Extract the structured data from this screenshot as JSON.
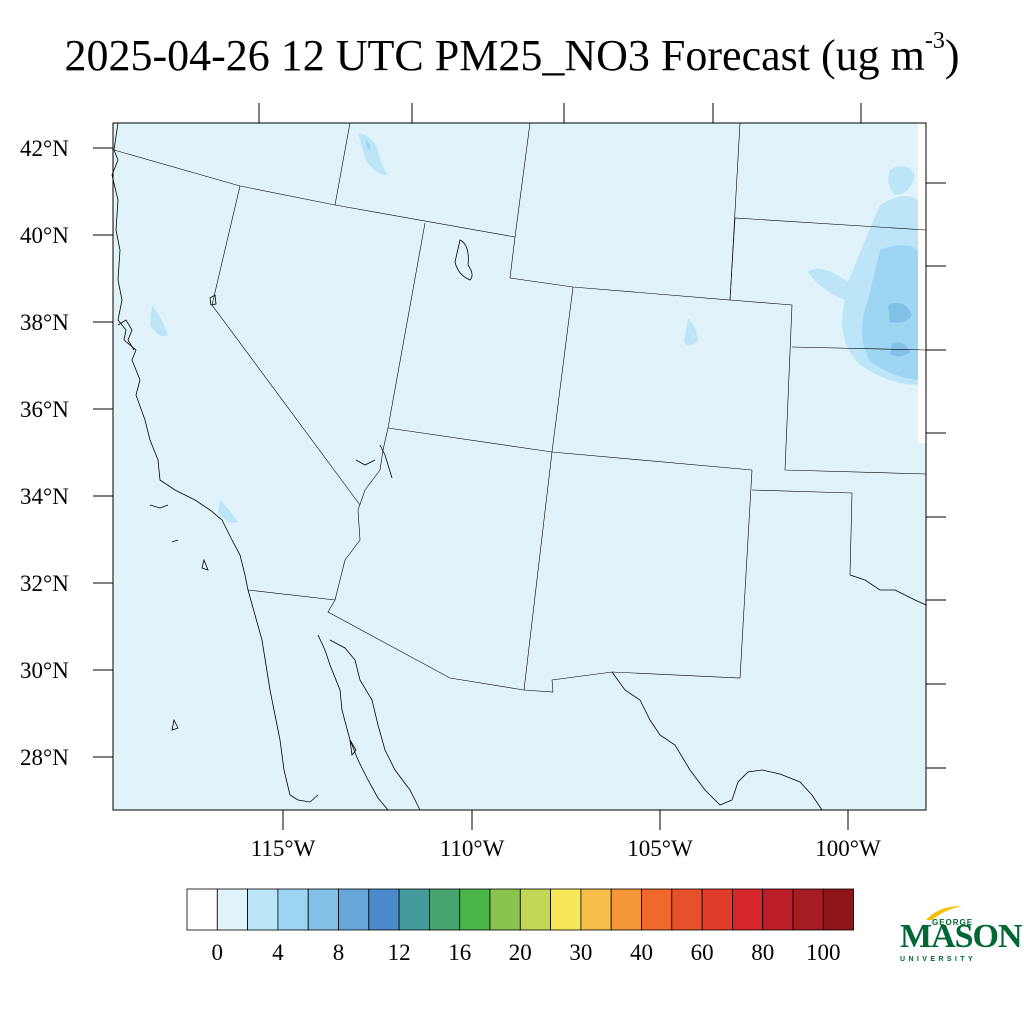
{
  "title": {
    "text": "2025-04-26 12 UTC PM25_NO3 Forecast (ug m",
    "unit_exponent": "-3",
    "closing": ")"
  },
  "lat_labels": [
    "42°N",
    "40°N",
    "38°N",
    "36°N",
    "34°N",
    "32°N",
    "30°N",
    "28°N"
  ],
  "lon_labels": [
    "115°W",
    "110°W",
    "105°W",
    "100°W"
  ],
  "colorbar": {
    "labels": [
      "0",
      "4",
      "8",
      "12",
      "16",
      "20",
      "30",
      "40",
      "60",
      "80",
      "100"
    ],
    "colors": [
      "#ffffff",
      "#e0f3fb",
      "#bde5f8",
      "#9dd6f3",
      "#82c0e8",
      "#66a8dc",
      "#4a8acb",
      "#459b9b",
      "#47a46e",
      "#49b647",
      "#88c54c",
      "#c2d756",
      "#f7e658",
      "#f6bd48",
      "#f5963a",
      "#f0692b",
      "#e6502a",
      "#e13b2a",
      "#d5262a",
      "#bc1e25",
      "#a51c22",
      "#8e1619"
    ]
  },
  "map": {
    "background_color": "#e0f3fb",
    "plume_colors": [
      "#bde5f8",
      "#9dd6f3",
      "#82c0e8"
    ]
  },
  "logo": {
    "line1": "GEORGE",
    "line2": "MASON",
    "line3": "UNIVERSITY"
  }
}
